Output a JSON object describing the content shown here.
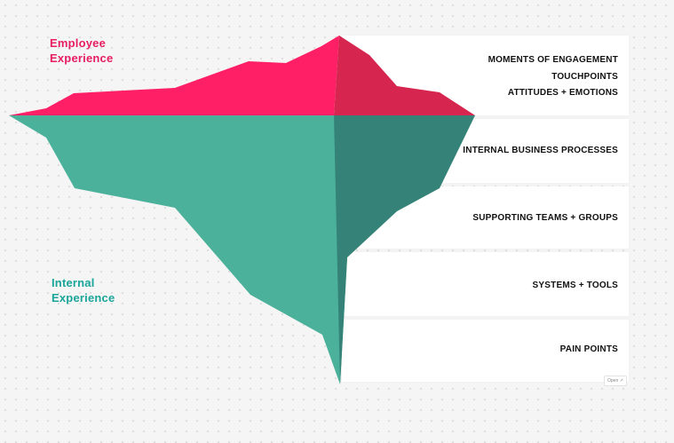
{
  "labels": {
    "employee_line1": "Employee",
    "employee_line2": "Experience",
    "internal_line1": "Internal",
    "internal_line2": "Experience"
  },
  "rows": {
    "top": [
      "MOMENTS OF ENGAGEMENT",
      "TOUCHPOINTS",
      "ATTITUDES + EMOTIONS"
    ],
    "business": "INTERNAL BUSINESS PROCESSES",
    "teams": "SUPPORTING TEAMS + GROUPS",
    "systems": "SYSTEMS + TOOLS",
    "pain": "PAIN POINTS"
  },
  "open_badge": "Open ↗",
  "colors": {
    "employee_accent": "#e61e64",
    "internal_accent": "#1aa59a",
    "tip_front": "#ff1f66",
    "tip_shadow": "#d6264f",
    "body_front": "#4bb19b",
    "body_shadow": "#358378"
  }
}
